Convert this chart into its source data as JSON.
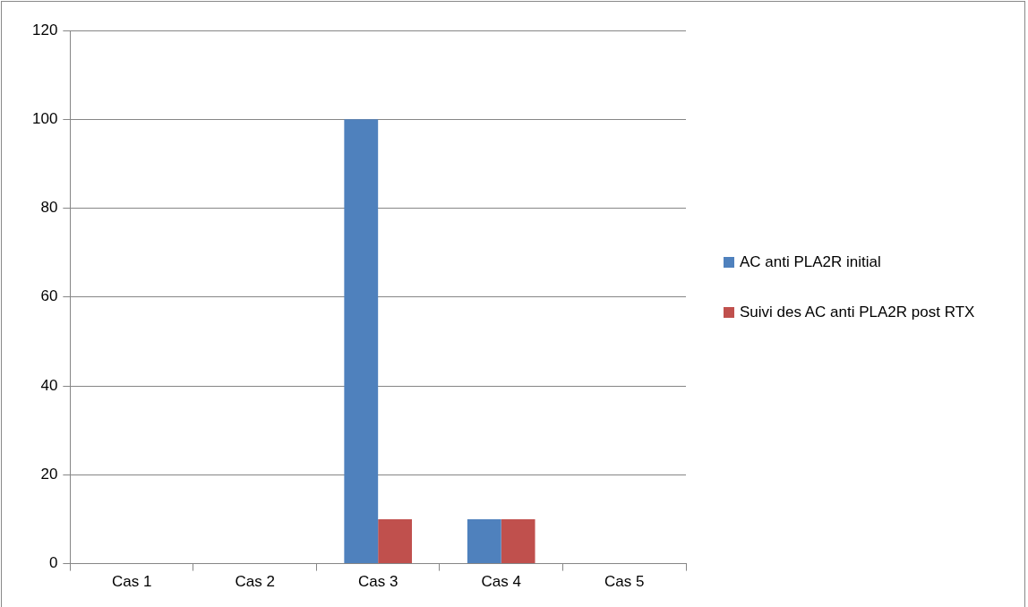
{
  "chart_data": {
    "type": "bar",
    "categories": [
      "Cas 1",
      "Cas 2",
      "Cas 3",
      "Cas 4",
      "Cas 5"
    ],
    "series": [
      {
        "name": "AC anti PLA2R initial",
        "color": "#4f81bd",
        "values": [
          0,
          0,
          100,
          10,
          0
        ]
      },
      {
        "name": "Suivi des AC anti PLA2R post RTX",
        "color": "#c0504d",
        "values": [
          0,
          0,
          10,
          10,
          0
        ]
      }
    ],
    "ylim": [
      0,
      120
    ],
    "yticks": [
      0,
      20,
      40,
      60,
      80,
      100,
      120
    ],
    "grid": "y",
    "legend": "right"
  }
}
